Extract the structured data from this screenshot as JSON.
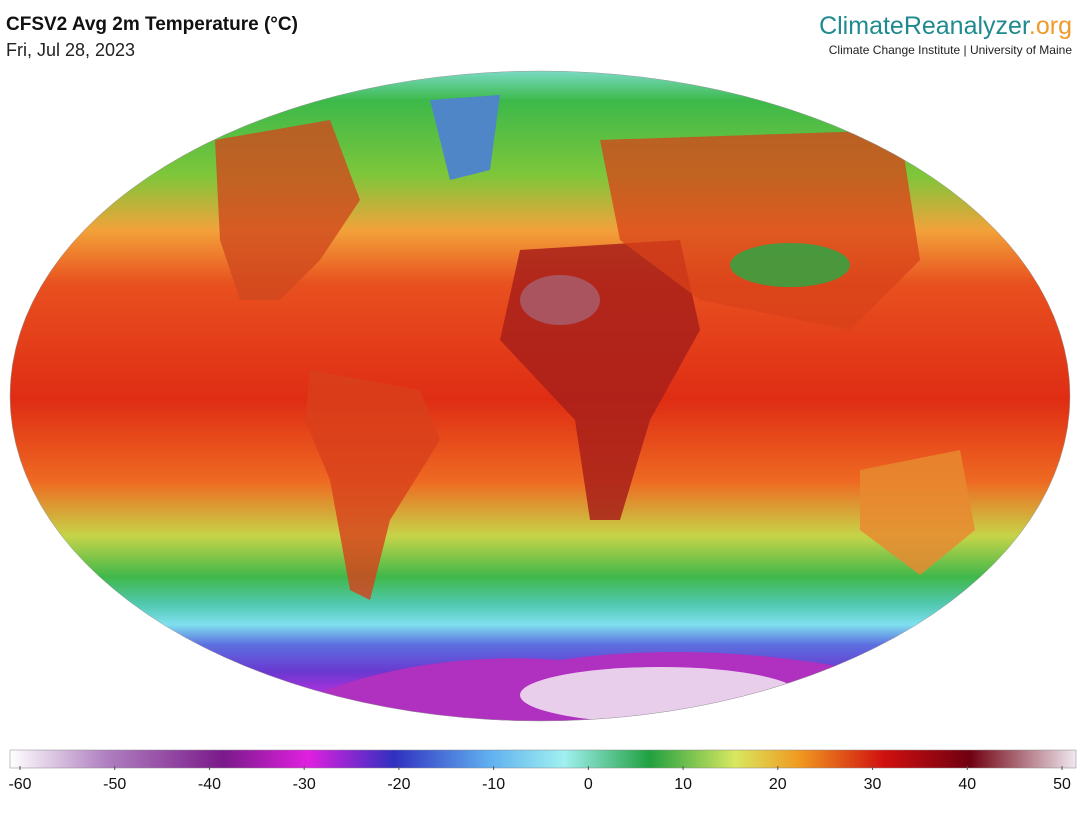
{
  "header": {
    "title": "CFSV2 Avg 2m Temperature (°C)",
    "date": "Fri, Jul 28, 2023"
  },
  "logo": {
    "name": "ClimateReanalyzer",
    "suffix": ".org",
    "affiliation": "Climate Change Institute | University of Maine"
  },
  "colorbar": {
    "lim": [
      -60,
      50
    ],
    "ticks": [
      -60,
      -50,
      -40,
      -30,
      -20,
      -10,
      0,
      10,
      20,
      30,
      40,
      50
    ]
  }
}
